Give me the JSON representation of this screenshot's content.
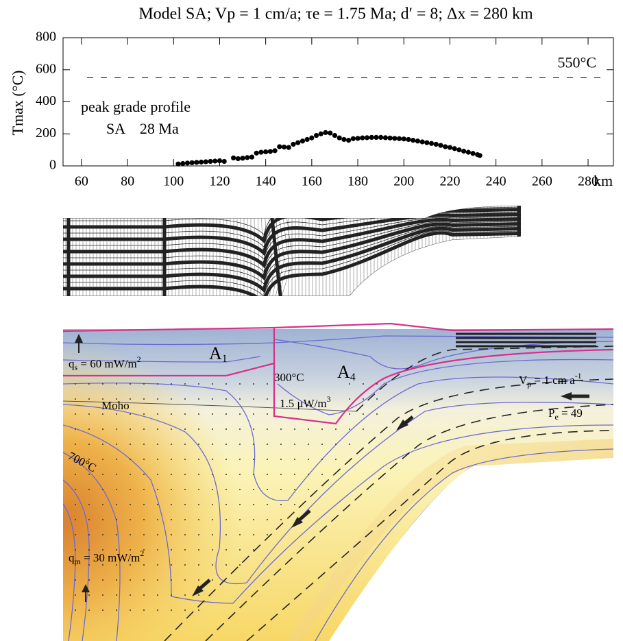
{
  "chart_data": {
    "type": "scatter",
    "title": "Model SA; Vp = 1 cm/a; τe = 1.75 Ma; d′ = 8; Δx = 280 km",
    "ylabel": "Tmax (°C)",
    "xlabel": "km",
    "annotations": [
      "peak grade profile",
      "SA    28 Ma"
    ],
    "reference_line": {
      "value": 550,
      "label": "550°C"
    },
    "color": "#000000",
    "x": [
      102,
      104,
      106,
      108,
      110,
      112,
      114,
      116,
      118,
      120,
      122,
      126,
      128,
      130,
      132,
      134,
      136,
      138,
      140,
      142,
      144,
      146,
      148,
      150,
      152,
      154,
      156,
      158,
      160,
      162,
      164,
      166,
      168,
      170,
      172,
      174,
      176,
      178,
      180,
      182,
      184,
      186,
      188,
      190,
      192,
      194,
      196,
      198,
      200,
      202,
      204,
      206,
      208,
      210,
      212,
      214,
      216,
      218,
      220,
      222,
      224,
      226,
      228,
      230,
      232,
      233
    ],
    "values": [
      12,
      15,
      18,
      20,
      22,
      24,
      26,
      28,
      30,
      32,
      28,
      50,
      45,
      48,
      52,
      55,
      80,
      85,
      88,
      90,
      95,
      120,
      118,
      115,
      135,
      145,
      155,
      165,
      175,
      190,
      200,
      208,
      205,
      190,
      175,
      165,
      160,
      170,
      172,
      175,
      176,
      178,
      178,
      178,
      176,
      174,
      172,
      170,
      168,
      165,
      160,
      155,
      150,
      145,
      140,
      135,
      128,
      120,
      115,
      108,
      100,
      92,
      85,
      78,
      70,
      65
    ],
    "xlim": [
      52,
      291
    ],
    "ylim": [
      0,
      800
    ],
    "xticks": [
      60,
      80,
      100,
      120,
      140,
      160,
      180,
      200,
      220,
      240,
      260,
      280
    ],
    "yticks": [
      0,
      200,
      400,
      600,
      800
    ]
  },
  "diagram": {
    "a1": {
      "main": "A",
      "sub": "1"
    },
    "a4": {
      "main": "A",
      "sub": "4"
    },
    "qs": {
      "main": "q",
      "sub": "s",
      "rest": " = 60 mW/m",
      "sup": "2"
    },
    "t300": "300°C",
    "heat": {
      "main": "1.5 μW/m",
      "sup": "3"
    },
    "moho": "Moho",
    "t700": "700°C",
    "qm": {
      "main": "q",
      "sub": "m",
      "rest": " = 30 mW/m",
      "sup": "2"
    },
    "vp": {
      "main": "V",
      "sub": "p",
      "rest": " = 1 cm a",
      "sup": "-1"
    },
    "pe": {
      "main": "P",
      "sub": "e",
      "rest": " = 49"
    }
  }
}
